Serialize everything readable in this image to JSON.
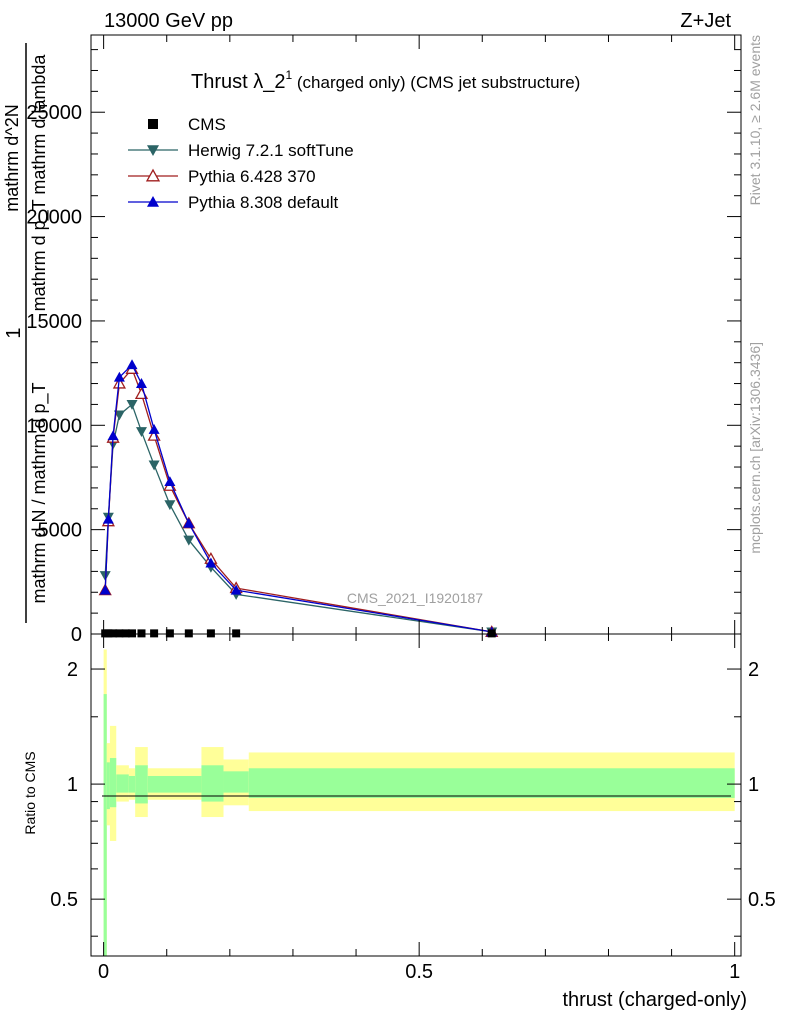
{
  "header": {
    "energy_label": "13000 GeV pp",
    "process_label": "Z+Jet"
  },
  "side_labels": {
    "rivet": "Rivet 3.1.10, ≥ 2.6M events",
    "mcplots": "mcplots.cern.ch [arXiv:1306.3436]"
  },
  "chart_data": [
    {
      "panel": "main",
      "type": "line",
      "title_main": "Thrust λ_2",
      "title_sup": "1",
      "title_rest": " (charged only) (CMS jet substructure)",
      "watermark": "CMS_2021_I1920187",
      "xlabel": "thrust (charged-only)",
      "ylabel_lines": [
        "1",
        "mathrm d N / mathrm d p_T",
        "mathrm d^2N",
        "mathrm d p_T mathrm d lambda"
      ],
      "xlim": [
        -0.02,
        1.01
      ],
      "ylim": [
        0,
        28700
      ],
      "yticks": [
        0,
        5000,
        10000,
        15000,
        20000,
        25000
      ],
      "legend_position": "top-left",
      "grid": false,
      "series": [
        {
          "name": "CMS",
          "color": "#000000",
          "marker": "square",
          "x": [
            0.0025,
            0.0075,
            0.015,
            0.025,
            0.035,
            0.045,
            0.06,
            0.08,
            0.105,
            0.135,
            0.17,
            0.21,
            0.615
          ],
          "y": [
            30,
            30,
            30,
            30,
            30,
            30,
            30,
            30,
            30,
            30,
            30,
            30,
            30
          ]
        },
        {
          "name": "Herwig 7.2.1 softTune",
          "color": "#2b6466",
          "marker": "triangle-down",
          "x": [
            0.0025,
            0.0075,
            0.015,
            0.025,
            0.045,
            0.06,
            0.08,
            0.105,
            0.135,
            0.17,
            0.21,
            0.615
          ],
          "y": [
            2800,
            5600,
            9100,
            10500,
            11000,
            9700,
            8100,
            6200,
            4500,
            3200,
            1900,
            100
          ]
        },
        {
          "name": "Pythia 6.428 370",
          "color": "#a01e1e",
          "marker": "triangle-up-open",
          "x": [
            0.0025,
            0.0075,
            0.015,
            0.025,
            0.045,
            0.06,
            0.08,
            0.105,
            0.135,
            0.17,
            0.21,
            0.615
          ],
          "y": [
            2100,
            5400,
            9400,
            12000,
            12700,
            11500,
            9500,
            7100,
            5300,
            3600,
            2200,
            100
          ]
        },
        {
          "name": "Pythia 8.308 default",
          "color": "#0000cc",
          "marker": "triangle-up",
          "x": [
            0.0025,
            0.0075,
            0.015,
            0.025,
            0.045,
            0.06,
            0.08,
            0.105,
            0.135,
            0.17,
            0.21,
            0.615
          ],
          "y": [
            2100,
            5500,
            9500,
            12300,
            12900,
            12000,
            9800,
            7300,
            5300,
            3400,
            2100,
            100
          ]
        }
      ]
    },
    {
      "panel": "ratio",
      "type": "area",
      "ylabel": "Ratio to CMS",
      "xlabel": "thrust (charged-only)",
      "xlim": [
        -0.02,
        1.01
      ],
      "ylim": [
        0.355,
        2.47
      ],
      "log_y": true,
      "yticks": [
        0.5,
        1,
        2
      ],
      "xticks": [
        0,
        0.5,
        1
      ],
      "bands": {
        "colors": {
          "outer": "#ffff99",
          "inner": "#99ff99"
        },
        "bins": [
          {
            "x0": 0.0,
            "x1": 0.005,
            "outer_lo": 0.35,
            "outer_hi": 2.25,
            "inner_lo": 0.35,
            "inner_hi": 1.72
          },
          {
            "x0": 0.005,
            "x1": 0.01,
            "outer_lo": 0.78,
            "outer_hi": 1.28,
            "inner_lo": 0.86,
            "inner_hi": 1.14
          },
          {
            "x0": 0.01,
            "x1": 0.02,
            "outer_lo": 0.71,
            "outer_hi": 1.42,
            "inner_lo": 0.87,
            "inner_hi": 1.17
          },
          {
            "x0": 0.02,
            "x1": 0.04,
            "outer_lo": 0.9,
            "outer_hi": 1.12,
            "inner_lo": 0.95,
            "inner_hi": 1.06
          },
          {
            "x0": 0.04,
            "x1": 0.05,
            "outer_lo": 0.91,
            "outer_hi": 1.1,
            "inner_lo": 0.95,
            "inner_hi": 1.05
          },
          {
            "x0": 0.05,
            "x1": 0.07,
            "outer_lo": 0.82,
            "outer_hi": 1.25,
            "inner_lo": 0.89,
            "inner_hi": 1.12
          },
          {
            "x0": 0.07,
            "x1": 0.155,
            "outer_lo": 0.91,
            "outer_hi": 1.1,
            "inner_lo": 0.95,
            "inner_hi": 1.05
          },
          {
            "x0": 0.155,
            "x1": 0.19,
            "outer_lo": 0.82,
            "outer_hi": 1.25,
            "inner_lo": 0.9,
            "inner_hi": 1.12
          },
          {
            "x0": 0.19,
            "x1": 0.23,
            "outer_lo": 0.88,
            "outer_hi": 1.16,
            "inner_lo": 0.95,
            "inner_hi": 1.08
          },
          {
            "x0": 0.23,
            "x1": 1.0,
            "outer_lo": 0.85,
            "outer_hi": 1.21,
            "inner_lo": 0.92,
            "inner_hi": 1.1
          }
        ]
      },
      "reference_line": 1
    }
  ]
}
